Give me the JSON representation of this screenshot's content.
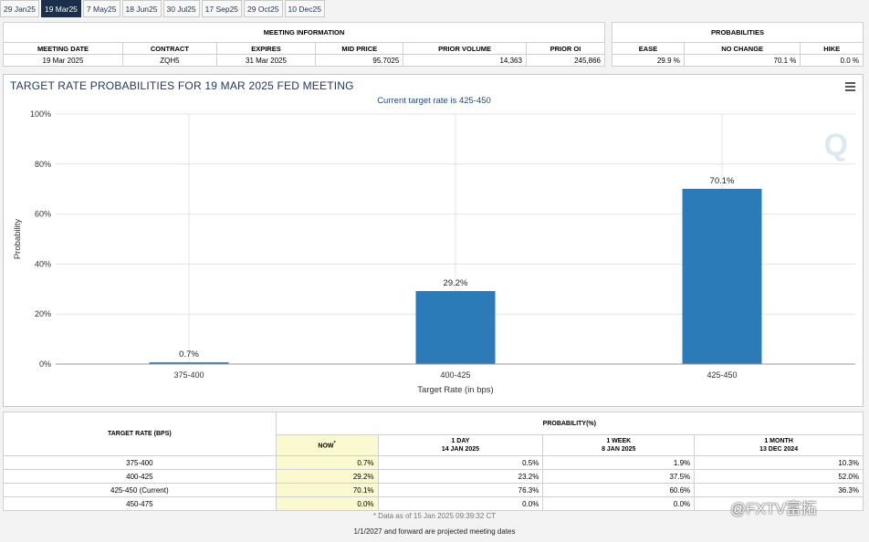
{
  "tabs": [
    "29 Jan25",
    "19 Mar25",
    "7 May25",
    "18 Jun25",
    "30 Jul25",
    "17 Sep25",
    "29 Oct25",
    "10 Dec25"
  ],
  "active_tab": 1,
  "meeting_info": {
    "title": "MEETING INFORMATION",
    "headers": [
      "MEETING DATE",
      "CONTRACT",
      "EXPIRES",
      "MID PRICE",
      "PRIOR VOLUME",
      "PRIOR OI"
    ],
    "values": [
      "19 Mar 2025",
      "ZQH5",
      "31 Mar 2025",
      "95.7025",
      "14,363",
      "245,866"
    ]
  },
  "probabilities": {
    "title": "PROBABILITIES",
    "headers": [
      "EASE",
      "NO CHANGE",
      "HIKE"
    ],
    "values": [
      "29.9 %",
      "70.1 %",
      "0.0 %"
    ]
  },
  "chart": {
    "title": "TARGET RATE PROBABILITIES FOR 19 MAR 2025 FED MEETING",
    "subtitle": "Current target rate is 425-450",
    "watermark_icon": "quikstrike-q-icon",
    "bar_color": "#2b7bb9"
  },
  "chart_data": {
    "type": "bar",
    "categories": [
      "375-400",
      "400-425",
      "425-450"
    ],
    "values": [
      0.7,
      29.2,
      70.1
    ],
    "data_labels": [
      "0.7%",
      "29.2%",
      "70.1%"
    ],
    "xlabel": "Target Rate (in bps)",
    "ylabel": "Probability",
    "ylim": [
      0,
      100
    ],
    "yticks": [
      "0%",
      "20%",
      "40%",
      "60%",
      "80%",
      "100%"
    ],
    "grid": true
  },
  "prob_table": {
    "col_target": "TARGET RATE (BPS)",
    "col_prob": "PROBABILITY(%)",
    "now_label": "NOW",
    "now_mark": "*",
    "day_label": "1 DAY",
    "day_date": "14 JAN 2025",
    "week_label": "1 WEEK",
    "week_date": "8 JAN 2025",
    "month_label": "1 MONTH",
    "month_date": "13 DEC 2024",
    "rows": [
      {
        "rate": "375-400",
        "now": "0.7%",
        "day": "0.5%",
        "week": "1.9%",
        "month": "10.3%"
      },
      {
        "rate": "400-425",
        "now": "29.2%",
        "day": "23.2%",
        "week": "37.5%",
        "month": "52.0%"
      },
      {
        "rate": "425-450 (Current)",
        "now": "70.1%",
        "day": "76.3%",
        "week": "60.6%",
        "month": "36.3%"
      },
      {
        "rate": "450-475",
        "now": "0.0%",
        "day": "0.0%",
        "week": "0.0%",
        "month": ""
      }
    ]
  },
  "data_note": "* Data as of 15 Jan 2025 09:39:32 CT",
  "footer_note": "1/1/2027 and forward are projected meeting dates",
  "watermark_text": "@FXTV富拓"
}
